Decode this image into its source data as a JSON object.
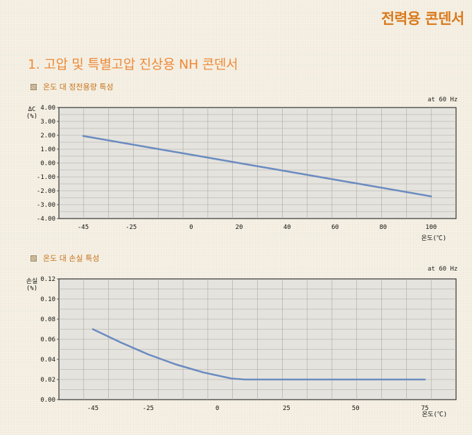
{
  "header": {
    "title": "전력용 콘덴서"
  },
  "section": {
    "title": "1. 고압 및 특별고압 진상용 NH 콘덴서"
  },
  "charts": [
    {
      "caption": "온도 대 정전용량 특성",
      "freq_note": "at 60 Hz"
    },
    {
      "caption": "온도 대 손실 특성",
      "freq_note": "at 60 Hz"
    }
  ],
  "chart_data": [
    {
      "type": "line",
      "title": "온도 대 정전용량 특성",
      "xlabel": "온도(℃)",
      "ylabel": "ΔC (%)",
      "x_ticks": [
        -45,
        -25,
        0,
        20,
        40,
        60,
        80,
        100
      ],
      "y_ticks": [
        "4.00",
        "3.00",
        "2.00",
        "1.00",
        "0.00",
        "-1.00",
        "-2.00",
        "-3.00",
        "-4.00"
      ],
      "xlim": [
        -45,
        100
      ],
      "ylim": [
        -4.0,
        4.0
      ],
      "grid": true,
      "line_color": "#6b8cc0",
      "series": [
        {
          "x": [
            -45,
            100
          ],
          "y": [
            1.95,
            -2.4
          ]
        }
      ]
    },
    {
      "type": "line",
      "title": "온도 대 손실 특성",
      "xlabel": "온도(℃)",
      "ylabel": "손실 (%)",
      "x_ticks": [
        -45,
        -25,
        0,
        25,
        50,
        75
      ],
      "y_ticks": [
        "0.12",
        "0.10",
        "0.08",
        "0.06",
        "0.04",
        "0.02",
        "0.00"
      ],
      "xlim": [
        -45,
        75
      ],
      "ylim": [
        0.0,
        0.12
      ],
      "grid": true,
      "line_color": "#6b8cc0",
      "series": [
        {
          "x": [
            -45,
            -35,
            -25,
            -15,
            -5,
            5,
            10,
            25,
            50,
            75
          ],
          "y": [
            0.07,
            0.057,
            0.045,
            0.035,
            0.027,
            0.021,
            0.02,
            0.02,
            0.02,
            0.02
          ]
        }
      ]
    }
  ]
}
